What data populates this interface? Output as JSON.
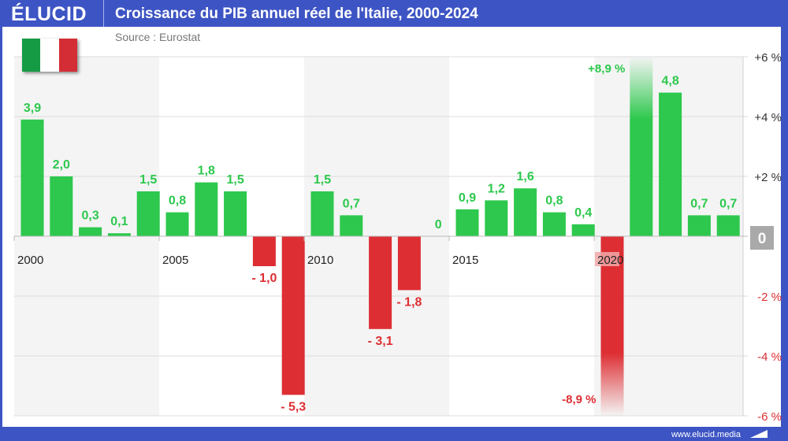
{
  "header": {
    "logo": "ÉLUCID",
    "title": "Croissance du PIB annuel réel de l'Italie, 2000-2024"
  },
  "source": "Source : Eurostat",
  "flag": {
    "country": "Italie",
    "colors": [
      "#169b45",
      "#ffffff",
      "#d42d35"
    ]
  },
  "footer": {
    "url": "www.elucid.media"
  },
  "colors": {
    "positive": "#2dc84d",
    "negative": "#dd2e33",
    "brand": "#3d54c4"
  },
  "chart_data": {
    "type": "bar",
    "title": "Croissance du PIB annuel réel de l'Italie, 2000-2024",
    "categories": [
      2000,
      2001,
      2002,
      2003,
      2004,
      2005,
      2006,
      2007,
      2008,
      2009,
      2010,
      2011,
      2012,
      2013,
      2014,
      2015,
      2016,
      2017,
      2018,
      2019,
      2020,
      2021,
      2022,
      2023,
      2024
    ],
    "values": [
      3.9,
      2.0,
      0.3,
      0.1,
      1.5,
      0.8,
      1.8,
      1.5,
      -1.0,
      -5.3,
      1.5,
      0.7,
      -3.1,
      -1.8,
      0,
      0.9,
      1.2,
      1.6,
      0.8,
      0.4,
      -8.9,
      8.9,
      4.8,
      0.7,
      0.7
    ],
    "data_labels": [
      "3,9",
      "2,0",
      "0,3",
      "0,1",
      "1,5",
      "0,8",
      "1,8",
      "1,5",
      "- 1,0",
      "- 5,3",
      "1,5",
      "0,7",
      "- 3,1",
      "- 1,8",
      "0",
      "0,9",
      "1,2",
      "1,6",
      "0,8",
      "0,4",
      "-8,9 %",
      "+8,9 %",
      "4,8",
      "0,7",
      "0,7"
    ],
    "x_tick_labels": [
      "2000",
      "2005",
      "2010",
      "2015",
      "2020"
    ],
    "y_ticks": [
      6,
      4,
      2,
      0,
      -2,
      -4,
      -6
    ],
    "y_tick_labels": [
      "+6 %",
      "+4 %",
      "+2 %",
      "0",
      "-2 %",
      "-4 %",
      "-6 %"
    ],
    "ylim": [
      -6,
      6
    ],
    "y_axis_position": "right",
    "grid": true
  }
}
